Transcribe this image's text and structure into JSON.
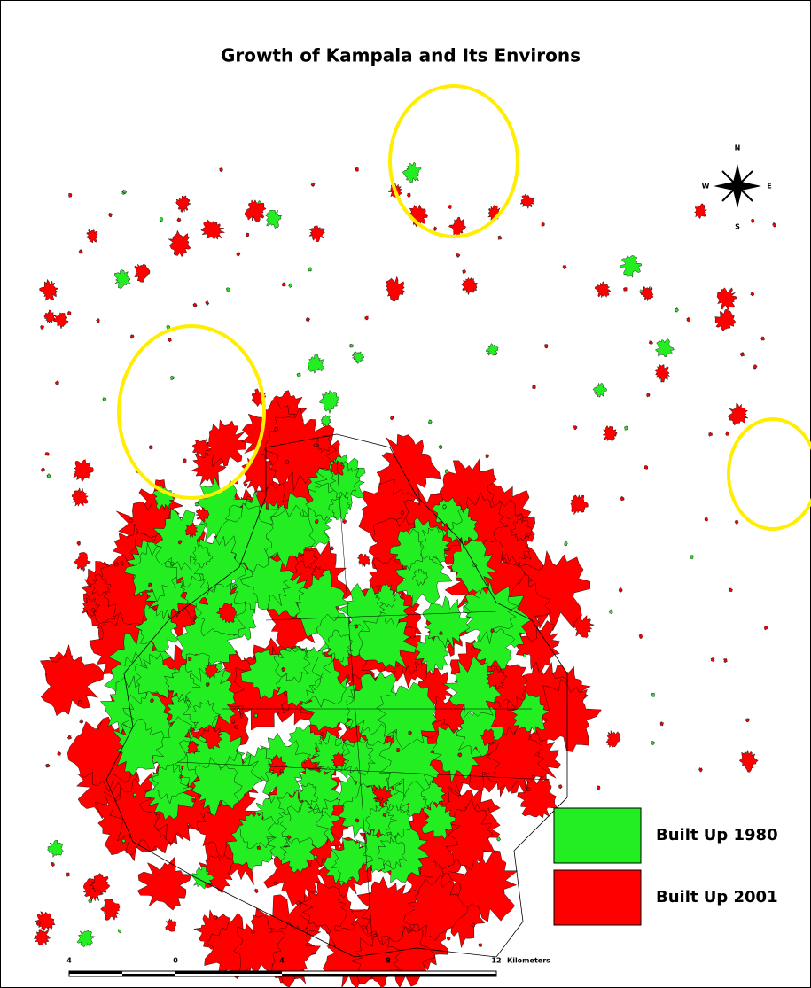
{
  "title": "Growth of Kampala and Its Environs",
  "compass": {
    "north": "N",
    "south": "S",
    "east": "E",
    "west": "W"
  },
  "legend": [
    {
      "label": "Built Up 1980",
      "color": "#22ee22"
    },
    {
      "label": "Built Up 2001",
      "color": "#ff0000"
    }
  ],
  "scale_bar": {
    "labels": [
      "4",
      "0",
      "4",
      "8",
      "12"
    ],
    "unit": "Kilometers"
  }
}
